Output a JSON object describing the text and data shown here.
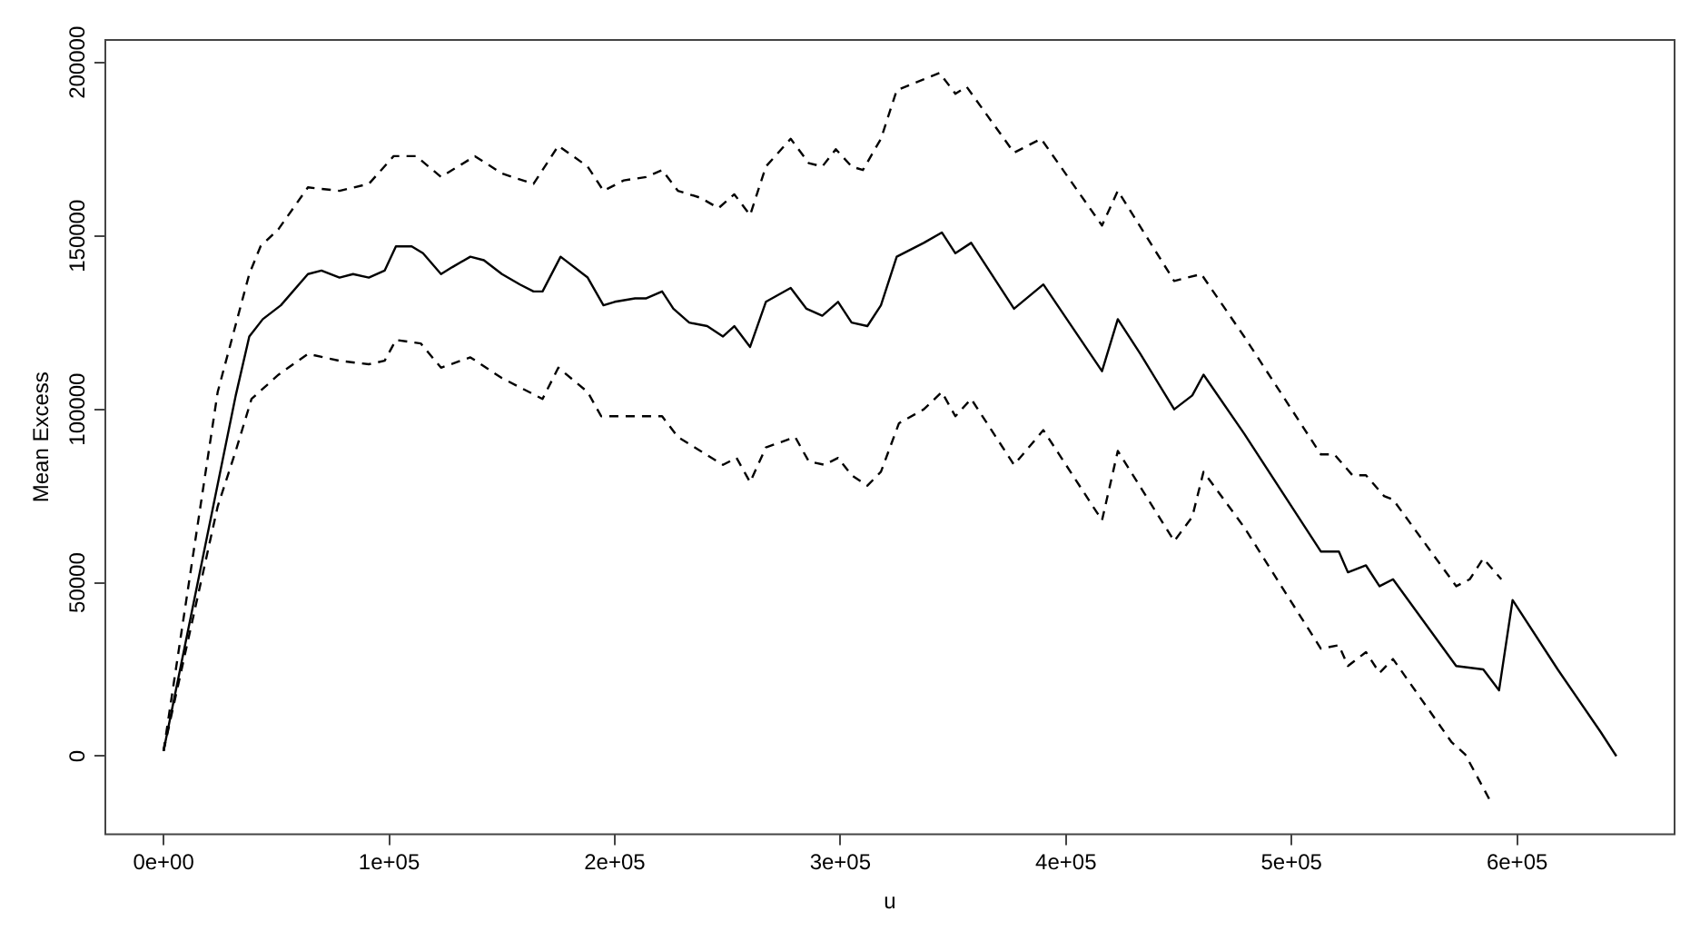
{
  "chart_data": {
    "type": "line",
    "xlabel": "u",
    "ylabel": "Mean Excess",
    "xlim": [
      -25800,
      669800
    ],
    "ylim": [
      -22500,
      206500
    ],
    "xticks": [
      {
        "value": 0,
        "label": "0e+00"
      },
      {
        "value": 100000,
        "label": "1e+05"
      },
      {
        "value": 200000,
        "label": "2e+05"
      },
      {
        "value": 300000,
        "label": "3e+05"
      },
      {
        "value": 400000,
        "label": "4e+05"
      },
      {
        "value": 500000,
        "label": "5e+05"
      },
      {
        "value": 600000,
        "label": "6e+05"
      }
    ],
    "yticks": [
      0,
      50000,
      100000,
      150000,
      200000
    ],
    "grid": false,
    "legend": false,
    "marker": "none",
    "series": [
      {
        "color": "#000000",
        "line_style": "dashed",
        "x": [
          0,
          24000,
          38000,
          43000,
          51000,
          64000,
          78000,
          91000,
          102000,
          112000,
          123000,
          138000,
          150000,
          164000,
          175000,
          188000,
          195000,
          204000,
          214000,
          221000,
          228000,
          238000,
          246000,
          253000,
          260000,
          267000,
          278000,
          286000,
          292000,
          298000,
          305000,
          310000,
          318000,
          325000,
          344000,
          351000,
          356000,
          377000,
          389000,
          416000,
          423000,
          448000,
          460000,
          479000,
          513000,
          519000,
          527000,
          533000,
          541000,
          545000,
          573000,
          579000,
          585000,
          593000
        ],
        "values": [
          1500,
          105000,
          139000,
          147000,
          152000,
          164000,
          163000,
          165000,
          173000,
          173000,
          167000,
          173000,
          168000,
          165000,
          176000,
          170000,
          163000,
          166000,
          167000,
          169000,
          163000,
          161000,
          158000,
          162000,
          156000,
          170000,
          178000,
          171000,
          170000,
          175000,
          170000,
          169000,
          178000,
          192000,
          197000,
          191000,
          193000,
          174000,
          178000,
          153000,
          163000,
          137000,
          139000,
          121000,
          87000,
          87000,
          81000,
          81000,
          75000,
          74000,
          49000,
          51000,
          57000,
          51000
        ]
      },
      {
        "color": "#000000",
        "line_style": "solid",
        "x": [
          0,
          32000,
          38000,
          44000,
          52000,
          64000,
          70000,
          78000,
          84000,
          91000,
          98000,
          103000,
          110000,
          115000,
          123000,
          128000,
          136000,
          142000,
          150000,
          158000,
          164000,
          168000,
          176000,
          188000,
          195000,
          200000,
          209000,
          214000,
          221000,
          226000,
          233000,
          241000,
          248000,
          253000,
          260000,
          267000,
          278000,
          285000,
          292000,
          299000,
          305000,
          312000,
          318000,
          325000,
          337000,
          345000,
          351000,
          358000,
          377000,
          390000,
          416000,
          423000,
          433000,
          448000,
          456000,
          461000,
          479000,
          513000,
          521000,
          525000,
          533000,
          539000,
          545000,
          573000,
          585000,
          592000,
          598000,
          618000,
          637000,
          644000
        ],
        "values": [
          1500,
          104000,
          121000,
          126000,
          130000,
          139000,
          140000,
          138000,
          139000,
          138000,
          140000,
          147000,
          147000,
          145000,
          139000,
          141000,
          144000,
          143000,
          139000,
          136000,
          134000,
          134000,
          144000,
          138000,
          130000,
          131000,
          132000,
          132000,
          134000,
          129000,
          125000,
          124000,
          121000,
          124000,
          118000,
          131000,
          135000,
          129000,
          127000,
          131000,
          125000,
          124000,
          130000,
          144000,
          148000,
          151000,
          145000,
          148000,
          129000,
          136000,
          111000,
          126000,
          116000,
          100000,
          104000,
          110000,
          93000,
          59000,
          59000,
          53000,
          55000,
          49000,
          51000,
          26000,
          25000,
          19000,
          45000,
          25000,
          7000,
          0
        ]
      },
      {
        "color": "#000000",
        "line_style": "dashed",
        "x": [
          0,
          24000,
          32000,
          39000,
          51000,
          64000,
          78000,
          91000,
          98000,
          103000,
          114000,
          123000,
          136000,
          150000,
          168000,
          175000,
          188000,
          194000,
          204000,
          214000,
          221000,
          228000,
          238000,
          248000,
          254000,
          260000,
          267000,
          280000,
          286000,
          293000,
          299000,
          305000,
          312000,
          318000,
          326000,
          337000,
          345000,
          351000,
          358000,
          377000,
          390000,
          416000,
          423000,
          448000,
          456000,
          461000,
          479000,
          513000,
          521000,
          525000,
          533000,
          539000,
          545000,
          571000,
          577000,
          589000
        ],
        "values": [
          1500,
          72000,
          88000,
          103000,
          110000,
          116000,
          114000,
          113000,
          114000,
          120000,
          119000,
          112000,
          115000,
          109000,
          103000,
          112000,
          105000,
          98000,
          98000,
          98000,
          98000,
          92000,
          88000,
          84000,
          86000,
          79000,
          89000,
          92000,
          85000,
          84000,
          86000,
          81000,
          78000,
          82000,
          96000,
          100000,
          105000,
          98000,
          103000,
          84000,
          94000,
          68000,
          88000,
          62000,
          69000,
          82000,
          66000,
          31000,
          32000,
          26000,
          30000,
          24000,
          28000,
          4000,
          500,
          -14000
        ]
      }
    ]
  }
}
